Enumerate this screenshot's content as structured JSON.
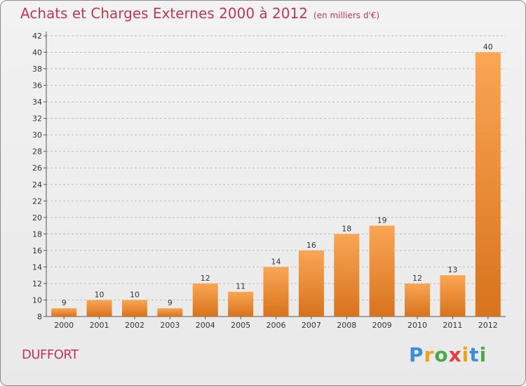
{
  "title": "Achats et Charges Externes 2000 à 2012",
  "subtitle": "(en milliers d'€)",
  "place": "DUFFORT",
  "logo": "Proxiti",
  "colors": {
    "bar_top": "#f9a655",
    "bar_bottom": "#d8731c",
    "title": "#c0375a",
    "grid": "#bdbdbd"
  },
  "chart_data": {
    "type": "bar",
    "title": "Achats et Charges Externes 2000 à 2012",
    "subtitle": "(en milliers d'€)",
    "categories": [
      "2000",
      "2001",
      "2002",
      "2003",
      "2004",
      "2005",
      "2006",
      "2007",
      "2008",
      "2009",
      "2010",
      "2011",
      "2012"
    ],
    "values": [
      9,
      10,
      10,
      9,
      12,
      11,
      14,
      16,
      18,
      19,
      12,
      13,
      40
    ],
    "ylim": [
      8,
      42
    ],
    "yticks": [
      8,
      10,
      12,
      14,
      16,
      18,
      20,
      22,
      24,
      26,
      28,
      30,
      32,
      34,
      36,
      38,
      40,
      42
    ],
    "grid": true,
    "grid_style": "dashed-horizontal"
  }
}
